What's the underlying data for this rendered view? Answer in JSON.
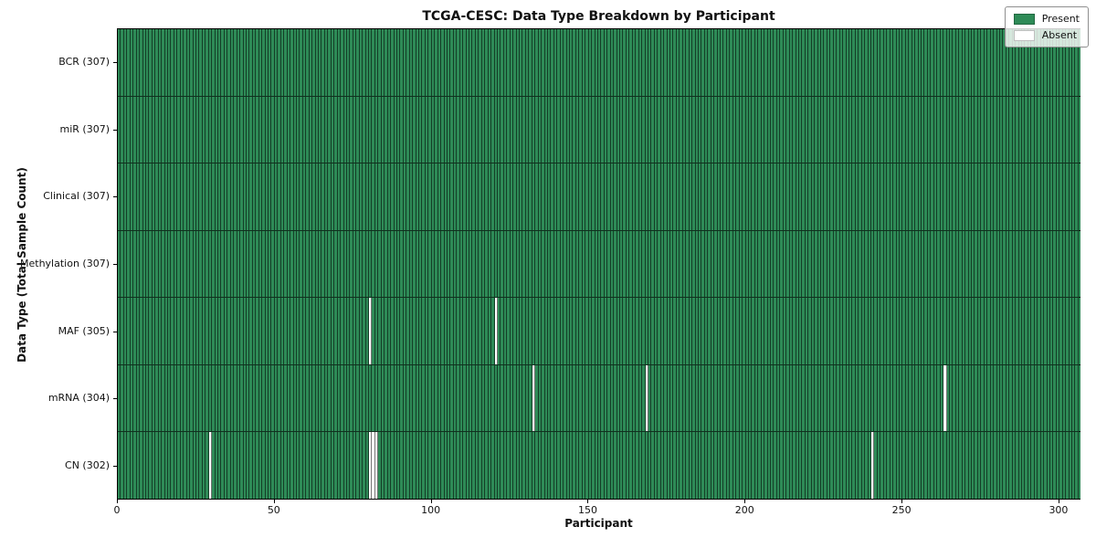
{
  "colors": {
    "present": "#2e8b57",
    "absent": "#ffffff",
    "cell_edge": "rgba(0,0,0,0.55)"
  },
  "chart_data": {
    "type": "heatmap",
    "title": "TCGA-CESC: Data Type Breakdown by Participant",
    "xlabel": "Participant",
    "ylabel": "Data Type (Total Sample Count)",
    "n_participants": 307,
    "x_ticks": [
      0,
      50,
      100,
      150,
      200,
      250,
      300
    ],
    "legend_position": "upper right",
    "grid": "cell-edges",
    "legend": [
      {
        "label": "Present",
        "color": "#2e8b57"
      },
      {
        "label": "Absent",
        "color": "#ffffff"
      }
    ],
    "rows": [
      {
        "label": "BCR (307)",
        "data_type": "BCR",
        "total": 307,
        "absent_participants": []
      },
      {
        "label": "miR (307)",
        "data_type": "miR",
        "total": 307,
        "absent_participants": []
      },
      {
        "label": "Clinical (307)",
        "data_type": "Clinical",
        "total": 307,
        "absent_participants": []
      },
      {
        "label": "Methylation (307)",
        "data_type": "Methylation",
        "total": 307,
        "absent_participants": []
      },
      {
        "label": "MAF (305)",
        "data_type": "MAF",
        "total": 305,
        "absent_participants": [
          80,
          120
        ]
      },
      {
        "label": "mRNA (304)",
        "data_type": "mRNA",
        "total": 304,
        "absent_participants": [
          132,
          168,
          263
        ]
      },
      {
        "label": "CN (302)",
        "data_type": "CN",
        "total": 302,
        "absent_participants": [
          29,
          80,
          81,
          82,
          240
        ]
      }
    ]
  }
}
